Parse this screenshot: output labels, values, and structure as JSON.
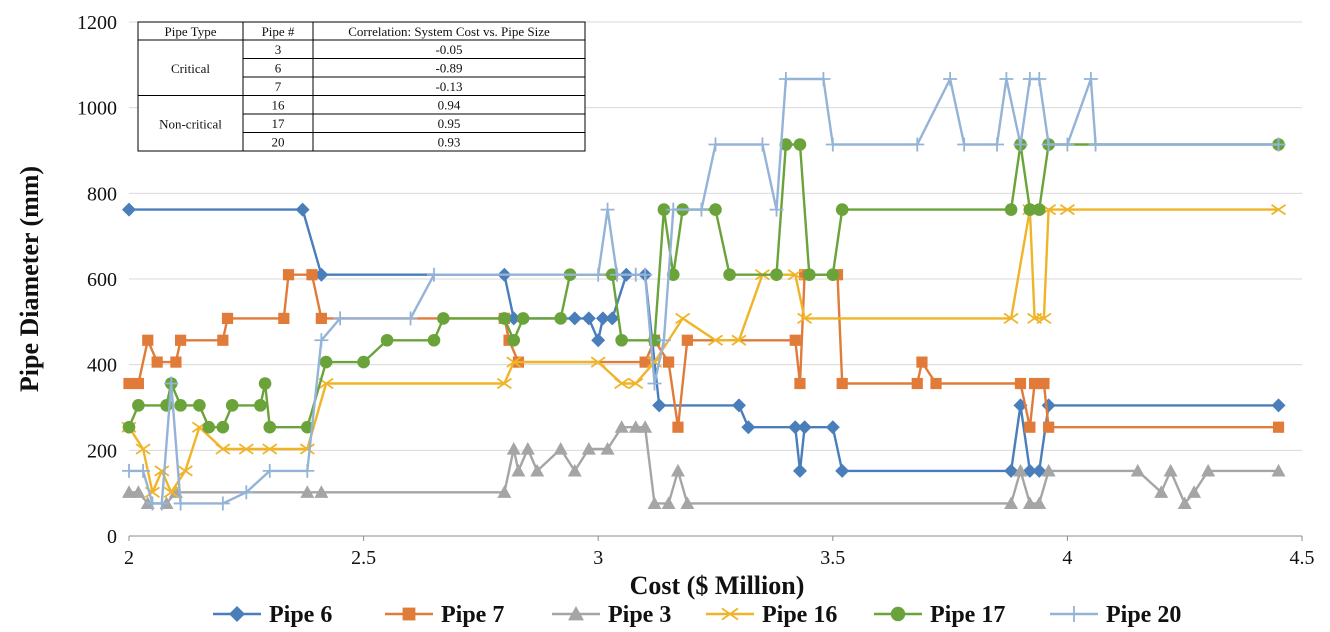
{
  "chart_data": {
    "type": "line",
    "title": "",
    "xlabel": "Cost ($ Million)",
    "ylabel": "Pipe Diameter (mm)",
    "xlim": [
      2,
      4.5
    ],
    "ylim": [
      0,
      1200
    ],
    "xticks": [
      "2",
      "2.5",
      "3",
      "3.5",
      "4",
      "4.5"
    ],
    "yticks": [
      "0",
      "200",
      "400",
      "600",
      "800",
      "1000",
      "1200"
    ],
    "grid": "horizontal",
    "legend_position": "bottom",
    "series": [
      {
        "name": "Pipe 6",
        "color": "#4a7ebb",
        "marker": "diamond",
        "points": [
          [
            2.0,
            762
          ],
          [
            2.37,
            762
          ],
          [
            2.41,
            610
          ],
          [
            2.8,
            610
          ],
          [
            2.82,
            508
          ],
          [
            2.95,
            508
          ],
          [
            2.98,
            508
          ],
          [
            3.0,
            457
          ],
          [
            3.01,
            508
          ],
          [
            3.03,
            508
          ],
          [
            3.06,
            610
          ],
          [
            3.1,
            610
          ],
          [
            3.13,
            305
          ],
          [
            3.3,
            305
          ],
          [
            3.32,
            254
          ],
          [
            3.42,
            254
          ],
          [
            3.43,
            152
          ],
          [
            3.44,
            254
          ],
          [
            3.5,
            254
          ],
          [
            3.52,
            152
          ],
          [
            3.88,
            152
          ],
          [
            3.9,
            305
          ],
          [
            3.92,
            152
          ],
          [
            3.94,
            152
          ],
          [
            3.96,
            305
          ],
          [
            4.45,
            305
          ]
        ]
      },
      {
        "name": "Pipe 7",
        "color": "#e07b39",
        "marker": "square",
        "points": [
          [
            2.0,
            356
          ],
          [
            2.02,
            356
          ],
          [
            2.04,
            457
          ],
          [
            2.06,
            406
          ],
          [
            2.1,
            406
          ],
          [
            2.11,
            457
          ],
          [
            2.2,
            457
          ],
          [
            2.21,
            508
          ],
          [
            2.33,
            508
          ],
          [
            2.34,
            610
          ],
          [
            2.39,
            610
          ],
          [
            2.41,
            508
          ],
          [
            2.8,
            508
          ],
          [
            2.81,
            457
          ],
          [
            2.83,
            406
          ],
          [
            3.1,
            406
          ],
          [
            3.12,
            457
          ],
          [
            3.15,
            406
          ],
          [
            3.17,
            254
          ],
          [
            3.19,
            457
          ],
          [
            3.42,
            457
          ],
          [
            3.43,
            356
          ],
          [
            3.44,
            610
          ],
          [
            3.51,
            610
          ],
          [
            3.52,
            356
          ],
          [
            3.68,
            356
          ],
          [
            3.69,
            406
          ],
          [
            3.72,
            356
          ],
          [
            3.9,
            356
          ],
          [
            3.92,
            254
          ],
          [
            3.93,
            356
          ],
          [
            3.95,
            356
          ],
          [
            3.96,
            254
          ],
          [
            4.45,
            254
          ]
        ]
      },
      {
        "name": "Pipe 3",
        "color": "#a5a5a5",
        "marker": "triangle",
        "points": [
          [
            2.0,
            102
          ],
          [
            2.02,
            102
          ],
          [
            2.04,
            76
          ],
          [
            2.08,
            76
          ],
          [
            2.1,
            102
          ],
          [
            2.38,
            102
          ],
          [
            2.41,
            102
          ],
          [
            2.8,
            102
          ],
          [
            2.82,
            203
          ],
          [
            2.83,
            152
          ],
          [
            2.85,
            203
          ],
          [
            2.87,
            152
          ],
          [
            2.92,
            203
          ],
          [
            2.95,
            152
          ],
          [
            2.98,
            203
          ],
          [
            3.02,
            203
          ],
          [
            3.05,
            254
          ],
          [
            3.08,
            254
          ],
          [
            3.1,
            254
          ],
          [
            3.12,
            76
          ],
          [
            3.15,
            76
          ],
          [
            3.17,
            152
          ],
          [
            3.19,
            76
          ],
          [
            3.88,
            76
          ],
          [
            3.9,
            152
          ],
          [
            3.92,
            76
          ],
          [
            3.94,
            76
          ],
          [
            3.96,
            152
          ],
          [
            4.15,
            152
          ],
          [
            4.2,
            102
          ],
          [
            4.22,
            152
          ],
          [
            4.25,
            76
          ],
          [
            4.27,
            102
          ],
          [
            4.3,
            152
          ],
          [
            4.45,
            152
          ]
        ]
      },
      {
        "name": "Pipe 16",
        "color": "#f0b429",
        "marker": "x",
        "points": [
          [
            2.0,
            254
          ],
          [
            2.03,
            203
          ],
          [
            2.05,
            102
          ],
          [
            2.07,
            152
          ],
          [
            2.09,
            102
          ],
          [
            2.12,
            152
          ],
          [
            2.15,
            254
          ],
          [
            2.2,
            203
          ],
          [
            2.25,
            203
          ],
          [
            2.3,
            203
          ],
          [
            2.38,
            203
          ],
          [
            2.42,
            356
          ],
          [
            2.8,
            356
          ],
          [
            2.82,
            406
          ],
          [
            3.0,
            406
          ],
          [
            3.05,
            356
          ],
          [
            3.08,
            356
          ],
          [
            3.12,
            406
          ],
          [
            3.18,
            508
          ],
          [
            3.25,
            457
          ],
          [
            3.3,
            457
          ],
          [
            3.35,
            610
          ],
          [
            3.42,
            610
          ],
          [
            3.44,
            508
          ],
          [
            3.88,
            508
          ],
          [
            3.92,
            762
          ],
          [
            3.93,
            508
          ],
          [
            3.95,
            508
          ],
          [
            3.96,
            762
          ],
          [
            4.0,
            762
          ],
          [
            4.45,
            762
          ]
        ]
      },
      {
        "name": "Pipe 17",
        "color": "#6aa33a",
        "marker": "circle",
        "points": [
          [
            2.0,
            254
          ],
          [
            2.02,
            305
          ],
          [
            2.08,
            305
          ],
          [
            2.09,
            356
          ],
          [
            2.11,
            305
          ],
          [
            2.15,
            305
          ],
          [
            2.17,
            254
          ],
          [
            2.2,
            254
          ],
          [
            2.22,
            305
          ],
          [
            2.28,
            305
          ],
          [
            2.29,
            356
          ],
          [
            2.3,
            254
          ],
          [
            2.38,
            254
          ],
          [
            2.42,
            406
          ],
          [
            2.5,
            406
          ],
          [
            2.55,
            457
          ],
          [
            2.65,
            457
          ],
          [
            2.67,
            508
          ],
          [
            2.8,
            508
          ],
          [
            2.82,
            457
          ],
          [
            2.84,
            508
          ],
          [
            2.92,
            508
          ],
          [
            2.94,
            610
          ],
          [
            3.03,
            610
          ],
          [
            3.05,
            457
          ],
          [
            3.12,
            457
          ],
          [
            3.14,
            762
          ],
          [
            3.16,
            610
          ],
          [
            3.18,
            762
          ],
          [
            3.25,
            762
          ],
          [
            3.28,
            610
          ],
          [
            3.38,
            610
          ],
          [
            3.4,
            914
          ],
          [
            3.43,
            914
          ],
          [
            3.45,
            610
          ],
          [
            3.5,
            610
          ],
          [
            3.52,
            762
          ],
          [
            3.88,
            762
          ],
          [
            3.9,
            914
          ],
          [
            3.92,
            762
          ],
          [
            3.94,
            762
          ],
          [
            3.96,
            914
          ],
          [
            4.45,
            914
          ]
        ]
      },
      {
        "name": "Pipe 20",
        "color": "#95b3d7",
        "marker": "plus",
        "points": [
          [
            2.0,
            152
          ],
          [
            2.03,
            152
          ],
          [
            2.05,
            76
          ],
          [
            2.07,
            76
          ],
          [
            2.09,
            356
          ],
          [
            2.11,
            76
          ],
          [
            2.2,
            76
          ],
          [
            2.25,
            102
          ],
          [
            2.3,
            152
          ],
          [
            2.38,
            152
          ],
          [
            2.41,
            457
          ],
          [
            2.45,
            508
          ],
          [
            2.6,
            508
          ],
          [
            2.65,
            610
          ],
          [
            3.0,
            610
          ],
          [
            3.02,
            762
          ],
          [
            3.04,
            610
          ],
          [
            3.08,
            610
          ],
          [
            3.1,
            610
          ],
          [
            3.12,
            356
          ],
          [
            3.14,
            457
          ],
          [
            3.16,
            762
          ],
          [
            3.22,
            762
          ],
          [
            3.25,
            914
          ],
          [
            3.35,
            914
          ],
          [
            3.38,
            762
          ],
          [
            3.4,
            1067
          ],
          [
            3.48,
            1067
          ],
          [
            3.5,
            914
          ],
          [
            3.68,
            914
          ],
          [
            3.75,
            1067
          ],
          [
            3.78,
            914
          ],
          [
            3.85,
            914
          ],
          [
            3.87,
            1067
          ],
          [
            3.9,
            914
          ],
          [
            3.92,
            1067
          ],
          [
            3.94,
            1067
          ],
          [
            3.96,
            914
          ],
          [
            4.0,
            914
          ],
          [
            4.05,
            1067
          ],
          [
            4.06,
            914
          ],
          [
            4.45,
            914
          ]
        ]
      }
    ],
    "legend": [
      "Pipe 6",
      "Pipe 7",
      "Pipe 3",
      "Pipe 16",
      "Pipe 17",
      "Pipe 20"
    ],
    "inset_table": {
      "headers": [
        "Pipe Type",
        "Pipe #",
        "Correlation: System Cost vs. Pipe Size"
      ],
      "groups": [
        {
          "type": "Critical",
          "rows": [
            [
              "3",
              "-0.05"
            ],
            [
              "6",
              "-0.89"
            ],
            [
              "7",
              "-0.13"
            ]
          ]
        },
        {
          "type": "Non-critical",
          "rows": [
            [
              "16",
              "0.94"
            ],
            [
              "17",
              "0.95"
            ],
            [
              "20",
              "0.93"
            ]
          ]
        }
      ]
    }
  }
}
